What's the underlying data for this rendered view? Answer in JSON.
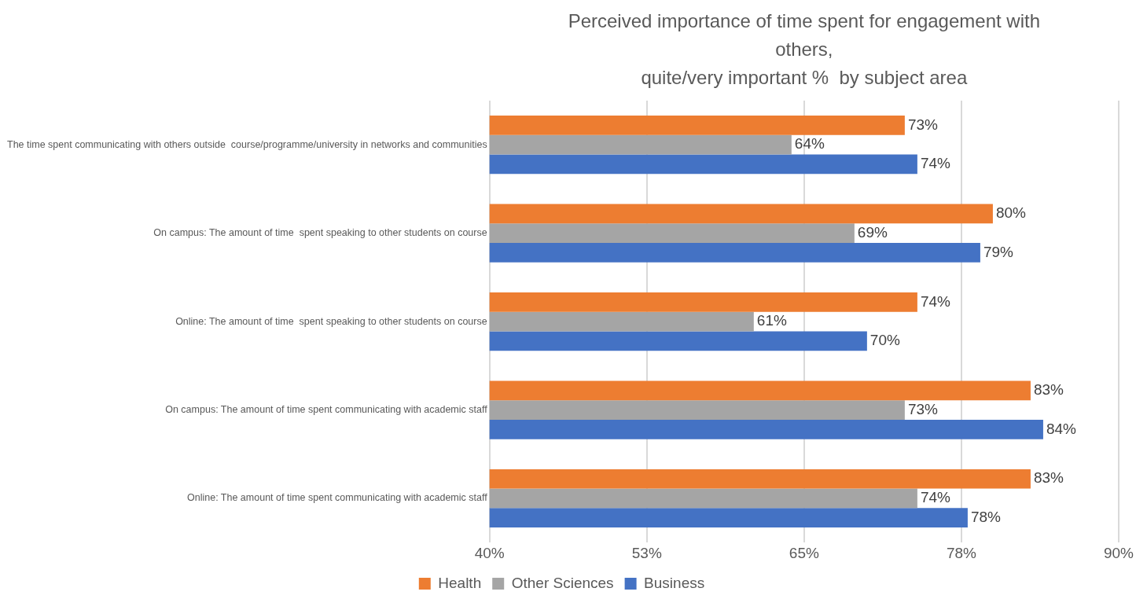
{
  "chart_data": {
    "type": "bar",
    "orientation": "horizontal",
    "title": "Perceived importance of time spent for engagement with\nothers,\nquite/very important %  by subject area",
    "categories": [
      "The time spent communicating with others outside  course/programme/university in networks and communities",
      "On campus: The amount of time  spent speaking to other students on course",
      "Online: The amount of time  spent speaking to other students on course",
      "On campus: The amount of time spent communicating with academic staff",
      "Online: The amount of time spent communicating with academic staff"
    ],
    "series": [
      {
        "name": "Health",
        "color": "#ed7d31",
        "values": [
          73,
          80,
          74,
          83,
          83
        ],
        "value_labels": [
          "73%",
          "80%",
          "74%",
          "83%",
          "83%"
        ]
      },
      {
        "name": "Other Sciences",
        "color": "#a5a5a5",
        "values": [
          64,
          69,
          61,
          73,
          74
        ],
        "value_labels": [
          "64%",
          "69%",
          "61%",
          "73%",
          "74%"
        ]
      },
      {
        "name": "Business",
        "color": "#4472c4",
        "values": [
          74,
          79,
          70,
          84,
          78
        ],
        "value_labels": [
          "74%",
          "79%",
          "70%",
          "84%",
          "78%"
        ]
      }
    ],
    "xlim": [
      40,
      90
    ],
    "xticks": [
      {
        "value": 40,
        "label": "40%"
      },
      {
        "value": 52.5,
        "label": "53%"
      },
      {
        "value": 65,
        "label": "65%"
      },
      {
        "value": 77.5,
        "label": "78%"
      },
      {
        "value": 90,
        "label": "90%"
      }
    ],
    "grid": "x",
    "legend": "bottom"
  }
}
